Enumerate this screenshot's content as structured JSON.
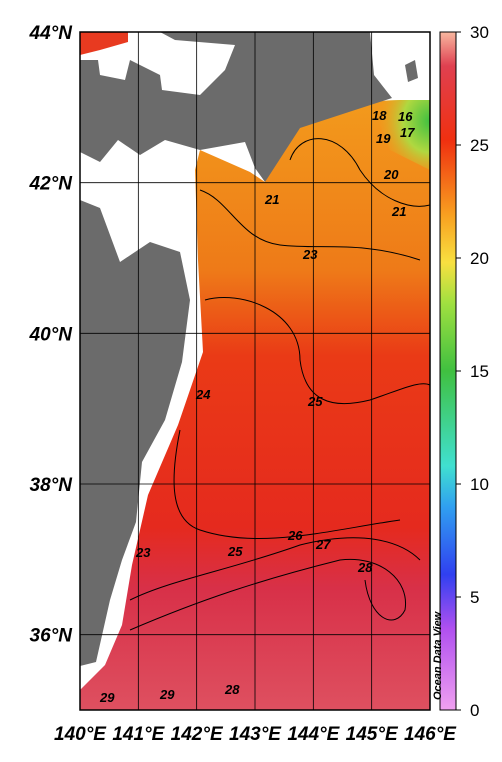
{
  "map": {
    "lon_ticks": [
      {
        "value": 140,
        "label": "140°E"
      },
      {
        "value": 141,
        "label": "141°E"
      },
      {
        "value": 142,
        "label": "142°E"
      },
      {
        "value": 143,
        "label": "143°E"
      },
      {
        "value": 144,
        "label": "144°E"
      },
      {
        "value": 145,
        "label": "145°E"
      },
      {
        "value": 146,
        "label": "146°E"
      }
    ],
    "lat_ticks": [
      {
        "value": 36,
        "label": "36°N"
      },
      {
        "value": 38,
        "label": "38°N"
      },
      {
        "value": 40,
        "label": "40°N"
      },
      {
        "value": 42,
        "label": "42°N"
      },
      {
        "value": 44,
        "label": "44°N"
      }
    ],
    "xlim": [
      140,
      146
    ],
    "ylim": [
      35,
      44
    ],
    "contour_labels": [
      16,
      17,
      18,
      19,
      20,
      21,
      21,
      23,
      24,
      25,
      23,
      25,
      26,
      27,
      28,
      29,
      29,
      28
    ],
    "colorbar": {
      "range": [
        0,
        30
      ],
      "ticks": [
        0,
        5,
        10,
        15,
        20,
        25,
        30
      ]
    },
    "attribution": "Ocean Data View"
  }
}
